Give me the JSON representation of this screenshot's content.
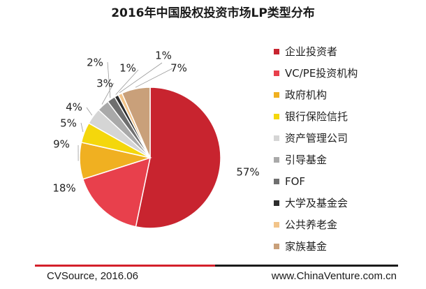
{
  "chart_data": {
    "type": "pie",
    "title": "2016年中国股权投资市场LP类型分布",
    "categories": [
      "企业投资者",
      "VC/PE投资机构",
      "政府机构",
      "银行保险信托",
      "资产管理公司",
      "引导基金",
      "FOF",
      "大学及基金会",
      "公共养老金",
      "家族基金"
    ],
    "values": [
      57,
      18,
      9,
      5,
      4,
      3,
      2,
      1,
      1,
      7
    ],
    "value_labels": [
      "57%",
      "18%",
      "9%",
      "5%",
      "4%",
      "3%",
      "2%",
      "1%",
      "1%",
      "7%"
    ],
    "colors": [
      "#c8242f",
      "#e8404c",
      "#f0b021",
      "#f4d70c",
      "#d5d5d5",
      "#a9a9a9",
      "#6f6f6f",
      "#2d2d2d",
      "#f2c48a",
      "#c9a07a"
    ],
    "legend_position": "right",
    "start_angle_deg": 0,
    "direction": "clockwise"
  },
  "footer": {
    "source": "CVSource, 2016.06",
    "site": "www.ChinaVenture.com.cn"
  }
}
